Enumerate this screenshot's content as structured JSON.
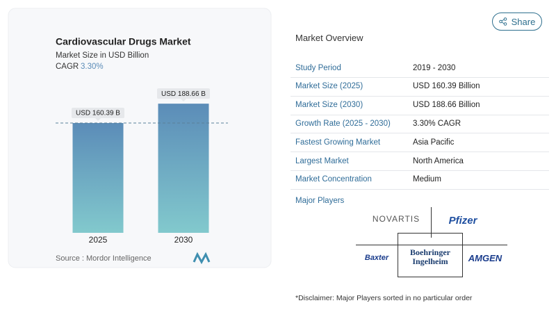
{
  "chart_data": {
    "type": "bar",
    "title": "Cardiovascular Drugs Market",
    "subtitle": "Market Size in USD Billion",
    "cagr_label": "CAGR",
    "cagr_value": "3.30%",
    "categories": [
      "2025",
      "2030"
    ],
    "values": [
      160.39,
      188.66
    ],
    "value_labels": [
      "USD 160.39 B",
      "USD 188.66 B"
    ],
    "ylim": [
      0,
      200
    ],
    "gradient": [
      "#5b8cb8",
      "#82c9cd"
    ],
    "reference_line": true,
    "source": "Source :  Mordor Intelligence"
  },
  "share": "Share",
  "overview": {
    "title": "Market Overview",
    "rows": [
      [
        "Study Period",
        "2019 - 2030"
      ],
      [
        "Market Size (2025)",
        "USD 160.39 Billion"
      ],
      [
        "Market Size (2030)",
        "USD 188.66 Billion"
      ],
      [
        "Growth Rate (2025 - 2030)",
        "3.30% CAGR"
      ],
      [
        "Fastest Growing Market",
        "Asia Pacific"
      ],
      [
        "Largest Market",
        "North America"
      ],
      [
        "Market Concentration",
        "Medium"
      ]
    ]
  },
  "major_players": {
    "title": "Major Players",
    "logos": [
      "NOVARTIS",
      "Pfizer",
      "Baxter",
      "Boehringer Ingelheim",
      "AMGEN"
    ]
  },
  "disclaimer": "*Disclaimer: Major Players sorted in no particular order"
}
